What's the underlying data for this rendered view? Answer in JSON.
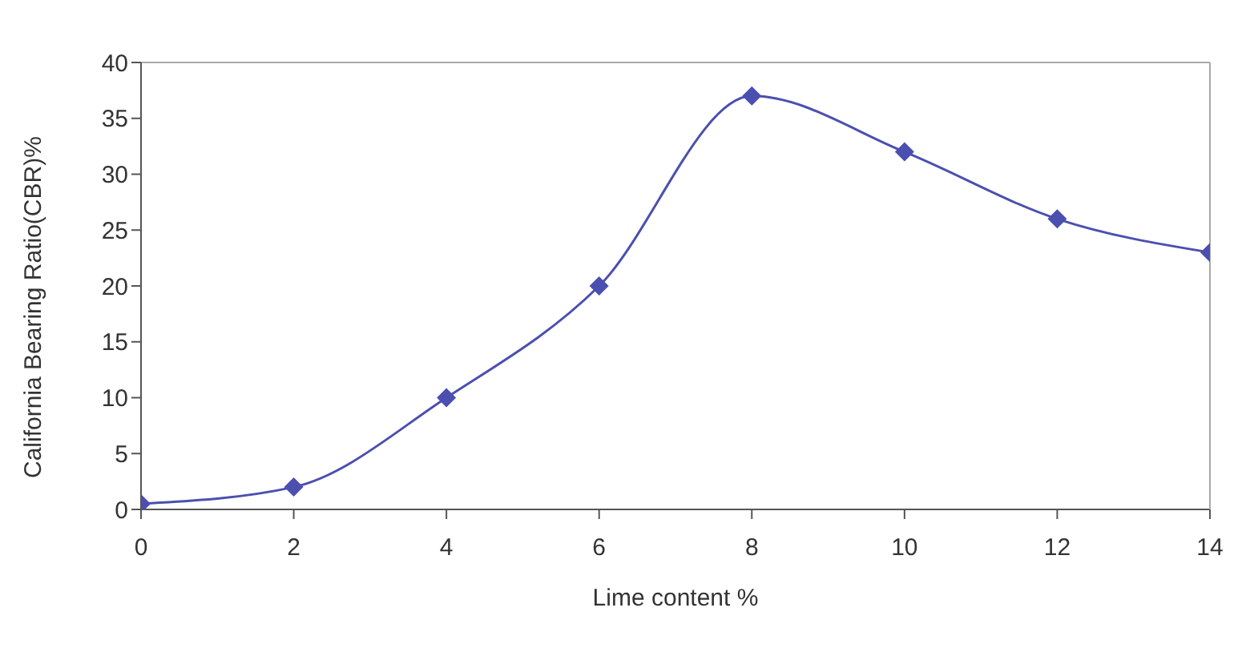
{
  "chart_data": {
    "type": "line",
    "xlabel": "Lime content %",
    "ylabel": "California Bearing Ratio(CBR)%",
    "x": [
      0,
      2,
      4,
      6,
      8,
      10,
      12,
      14
    ],
    "series": [
      {
        "color": "#4b4fb0",
        "values": [
          0.5,
          2,
          10,
          20,
          37,
          32,
          26,
          23
        ]
      }
    ],
    "xlim": [
      0,
      14
    ],
    "xticks": [
      0,
      2,
      4,
      6,
      8,
      10,
      12,
      14
    ],
    "ylim": [
      0,
      40
    ],
    "yticks": [
      0,
      5,
      10,
      15,
      20,
      25,
      30,
      35,
      40
    ],
    "grid": false,
    "legend": false,
    "marker": "diamond",
    "line_style": "solid"
  }
}
